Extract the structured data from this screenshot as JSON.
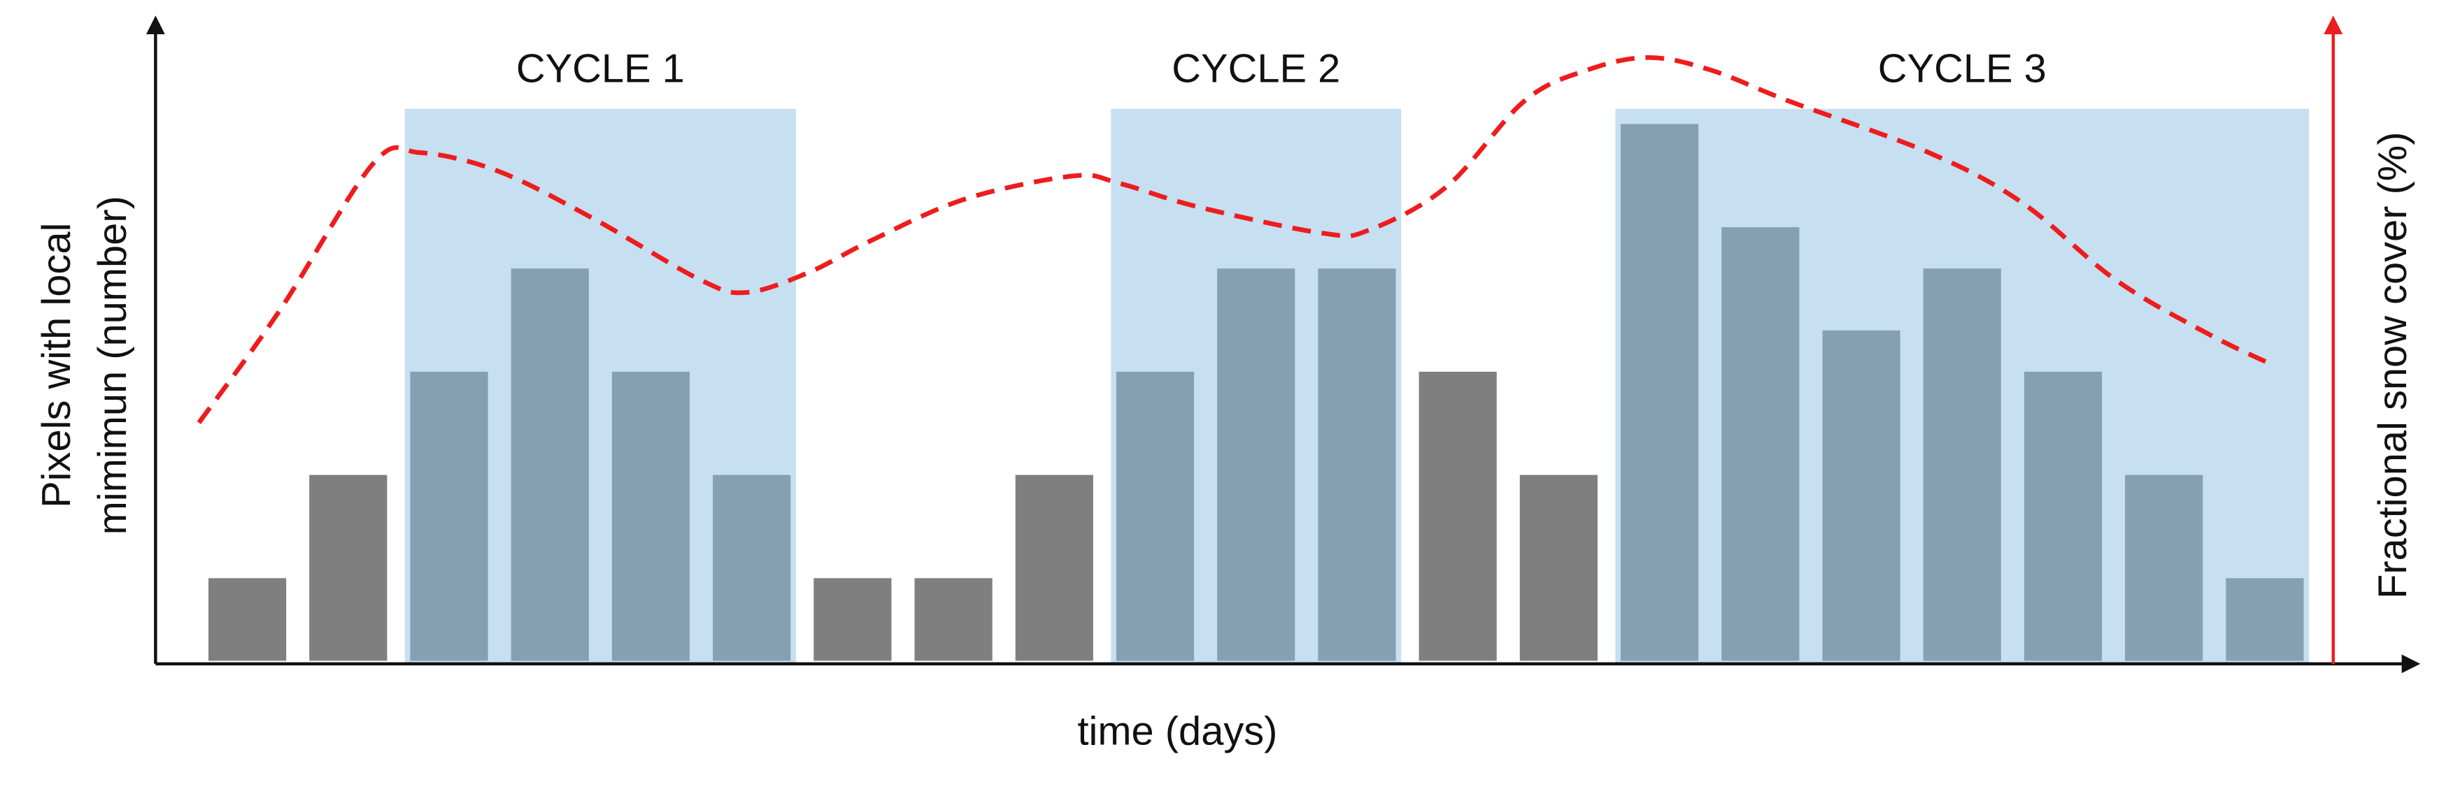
{
  "chart_data": {
    "type": "bar",
    "x_label": "time (days)",
    "y_label": [
      "Pixels with local",
      "mimimun (number)"
    ],
    "y2_label": "Fractional snow cover (%)",
    "categories": [
      null,
      null,
      null,
      null,
      null,
      null,
      null,
      null,
      null,
      null,
      null,
      null,
      null,
      null,
      null,
      null,
      null,
      null,
      null,
      null,
      null
    ],
    "values": [
      0.8,
      1.8,
      2.8,
      3.8,
      2.8,
      1.8,
      0.8,
      0.8,
      1.8,
      2.8,
      3.8,
      3.8,
      2.8,
      1.8,
      5.2,
      4.2,
      3.2,
      3.8,
      2.8,
      1.8,
      0.8
    ],
    "ylim": [
      0,
      6.1
    ],
    "bar_color": "#7f7f7f",
    "cycle_bar_color": "#86a0b3",
    "cycle_fill": "#c6dff1",
    "cycles": [
      {
        "label": "CYCLE 1",
        "start": 2,
        "end": 5
      },
      {
        "label": "CYCLE 2",
        "start": 9,
        "end": 11
      },
      {
        "label": "CYCLE 3",
        "start": 14,
        "end": 20
      }
    ],
    "line": {
      "color": "#ee1c1c",
      "axis": "y2",
      "x": [
        -0.48,
        0.32,
        1.25,
        1.71,
        2.48,
        3.41,
        4.49,
        4.95,
        5.57,
        6.18,
        7.11,
        8.19,
        8.65,
        9.42,
        10.66,
        11.12,
        11.89,
        12.66,
        13.28,
        13.89,
        14.51,
        15.28,
        16.67,
        17.59,
        18.52,
        19.44,
        20.09
      ],
      "values": [
        37.8,
        55.6,
        79,
        80.7,
        77.8,
        70.4,
        60.5,
        58.5,
        61.7,
        66.7,
        73.3,
        77,
        75.8,
        72.1,
        67.9,
        68.4,
        75.3,
        88.9,
        93.8,
        95.8,
        93.8,
        88.9,
        80.7,
        72.8,
        60.5,
        51.9,
        46.9
      ]
    },
    "y2lim": [
      0,
      100
    ]
  }
}
